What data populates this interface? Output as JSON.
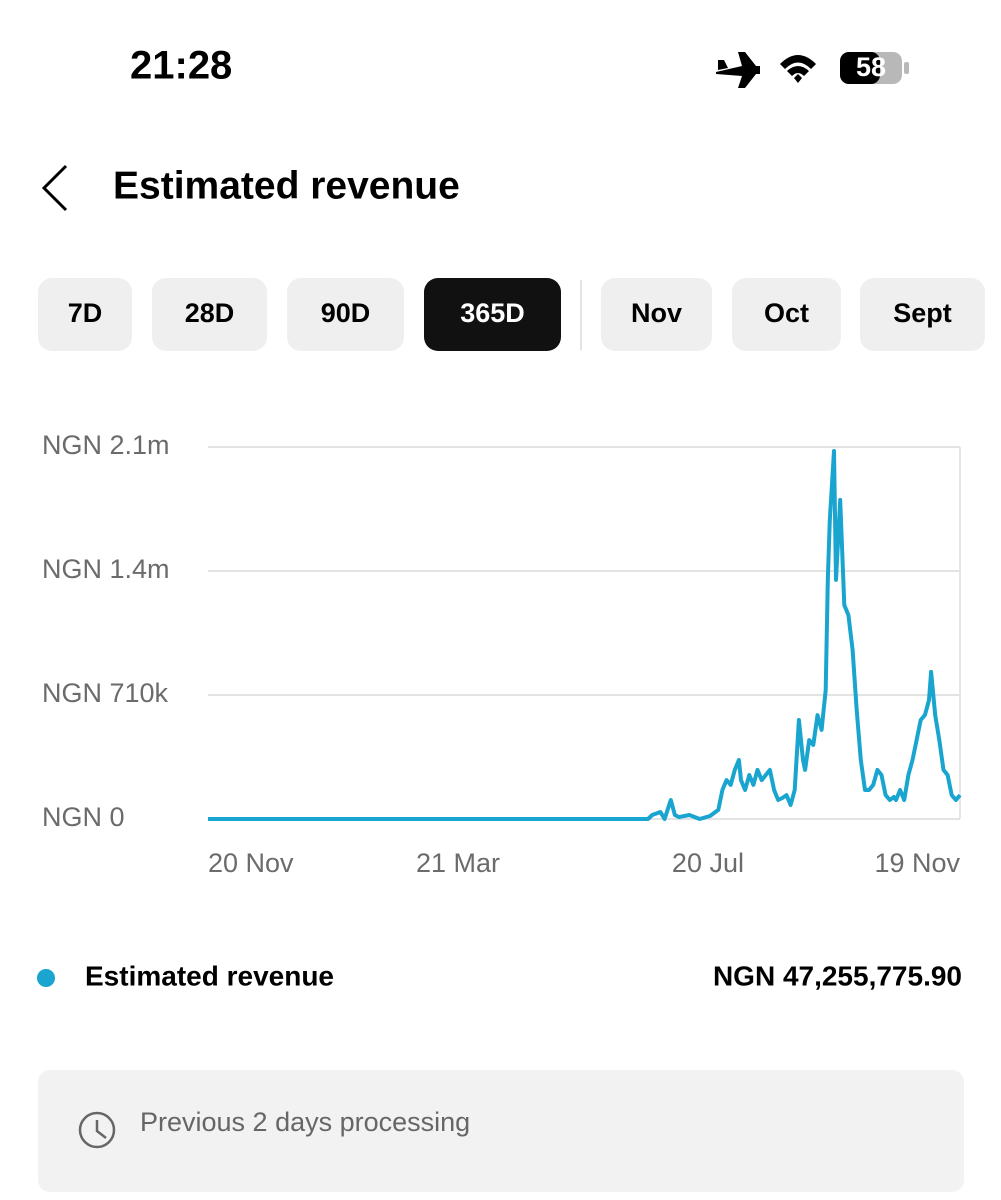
{
  "status_bar": {
    "time": "21:28",
    "battery": "58"
  },
  "header": {
    "title": "Estimated revenue"
  },
  "tabs": [
    {
      "label": "7D"
    },
    {
      "label": "28D"
    },
    {
      "label": "90D"
    },
    {
      "label": "365D",
      "selected": true
    },
    {
      "label": "Nov"
    },
    {
      "label": "Oct"
    },
    {
      "label": "Sept"
    }
  ],
  "chart_data": {
    "type": "line",
    "x": [
      0,
      213,
      215,
      219,
      221,
      224,
      226,
      228,
      233,
      238,
      243,
      247,
      249,
      251,
      253,
      255,
      257,
      258,
      260,
      262,
      264,
      266,
      268,
      270,
      272,
      274,
      276,
      278,
      280,
      282,
      284,
      286,
      288,
      289,
      291,
      293,
      295,
      297,
      299,
      300,
      301,
      303,
      304,
      306,
      308,
      310,
      312,
      314,
      316,
      318,
      320,
      322,
      324,
      326,
      328,
      330,
      332,
      333,
      335,
      337,
      339,
      341,
      343,
      345,
      347,
      349,
      350,
      352,
      354,
      356,
      358,
      360,
      362,
      364
    ],
    "series": [
      {
        "name": "Estimated revenue",
        "color": "#19a5cf",
        "values": [
          0,
          0,
          23000,
          40000,
          0,
          109000,
          23000,
          11000,
          23000,
          0,
          17000,
          52000,
          166000,
          223000,
          195000,
          281000,
          338000,
          223000,
          166000,
          252000,
          195000,
          281000,
          223000,
          252000,
          281000,
          166000,
          109000,
          120000,
          137000,
          80000,
          166000,
          567000,
          338000,
          281000,
          452000,
          424000,
          595000,
          510000,
          739000,
          1369000,
          1712000,
          2107000,
          1369000,
          1827000,
          1225000,
          1168000,
          968000,
          624000,
          338000,
          166000,
          166000,
          195000,
          281000,
          252000,
          137000,
          109000,
          126000,
          109000,
          166000,
          109000,
          252000,
          338000,
          452000,
          567000,
          595000,
          681000,
          842000,
          595000,
          452000,
          281000,
          252000,
          137000,
          109000,
          137000
        ]
      }
    ],
    "total": "NGN 47,255,775.90",
    "xlim": [
      0,
      364
    ],
    "xticks": [
      {
        "value": 0,
        "label": "20 Nov"
      },
      {
        "value": 121,
        "label": "21 Mar"
      },
      {
        "value": 242,
        "label": "20 Jul"
      },
      {
        "value": 364,
        "label": "19 Nov"
      }
    ],
    "ylim": [
      0,
      2130000
    ],
    "yticks": [
      {
        "value": 0,
        "label": "NGN 0"
      },
      {
        "value": 710000,
        "label": "NGN 710k"
      },
      {
        "value": 1420000,
        "label": "NGN 1.4m"
      },
      {
        "value": 2130000,
        "label": "NGN 2.1m"
      }
    ],
    "grid": true
  },
  "notice": {
    "text": "Previous 2 days processing"
  }
}
